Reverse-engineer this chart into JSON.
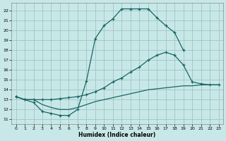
{
  "xlabel": "Humidex (Indice chaleur)",
  "xlim": [
    -0.5,
    23.5
  ],
  "ylim": [
    10.5,
    22.8
  ],
  "xticks": [
    0,
    1,
    2,
    3,
    4,
    5,
    6,
    7,
    8,
    9,
    10,
    11,
    12,
    13,
    14,
    15,
    16,
    17,
    18,
    19,
    20,
    21,
    22,
    23
  ],
  "yticks": [
    11,
    12,
    13,
    14,
    15,
    16,
    17,
    18,
    19,
    20,
    21,
    22
  ],
  "bg_color": "#c8e8e8",
  "line_color": "#1a6464",
  "grid_color": "#a0c4c4",
  "curve1_x": [
    0,
    1,
    2,
    3,
    4,
    5,
    6,
    7,
    8,
    9,
    10,
    11,
    12,
    13,
    14,
    15,
    16,
    17,
    18,
    19
  ],
  "curve1_y": [
    13.3,
    13.0,
    12.7,
    11.8,
    11.6,
    11.4,
    11.4,
    12.0,
    14.9,
    19.2,
    20.5,
    21.2,
    22.2,
    22.2,
    22.2,
    22.2,
    21.3,
    20.5,
    19.8,
    18.0
  ],
  "curve2_x": [
    0,
    1,
    2,
    3,
    4,
    5,
    6,
    7,
    8,
    9,
    10,
    11,
    12,
    13,
    14,
    15,
    16,
    17,
    18,
    19,
    20,
    21,
    22,
    23
  ],
  "curve2_y": [
    13.3,
    13.0,
    13.0,
    13.0,
    13.0,
    13.1,
    13.2,
    13.3,
    13.5,
    13.8,
    14.2,
    14.8,
    15.2,
    15.8,
    16.3,
    17.0,
    17.5,
    17.8,
    17.5,
    16.5,
    14.8,
    14.6,
    14.5,
    14.5
  ],
  "curve3_x": [
    0,
    1,
    2,
    3,
    4,
    5,
    6,
    7,
    8,
    9,
    10,
    11,
    12,
    13,
    14,
    15,
    16,
    17,
    18,
    19,
    20,
    21,
    22,
    23
  ],
  "curve3_y": [
    13.3,
    13.0,
    13.0,
    12.5,
    12.2,
    12.0,
    12.0,
    12.2,
    12.5,
    12.8,
    13.0,
    13.2,
    13.4,
    13.6,
    13.8,
    14.0,
    14.1,
    14.2,
    14.3,
    14.4,
    14.4,
    14.5,
    14.5,
    14.5
  ]
}
